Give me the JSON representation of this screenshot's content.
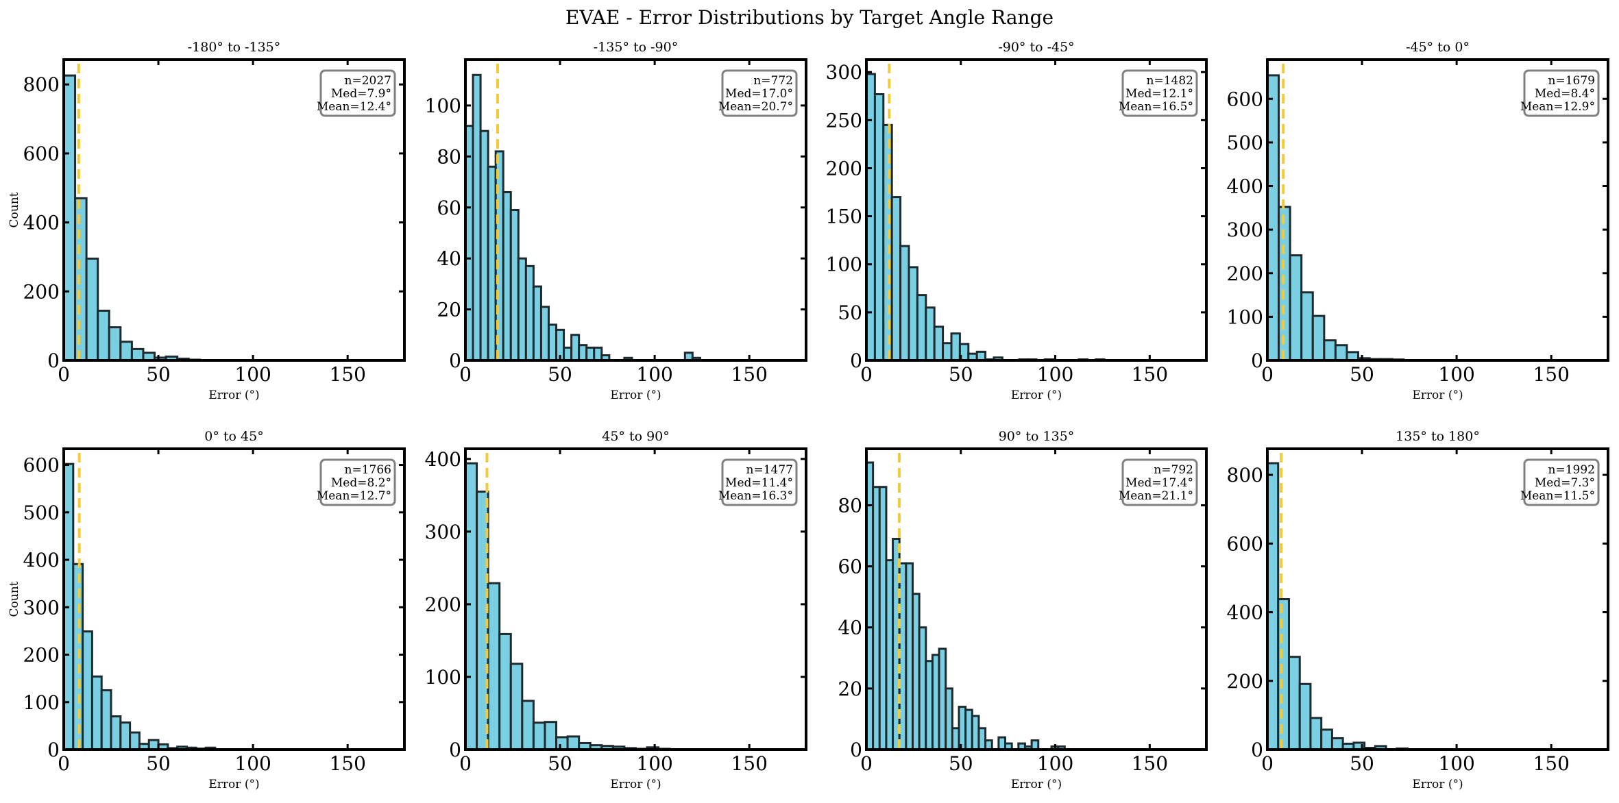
{
  "chart_data": {
    "type": "bar",
    "title": "EVAE - Error Distributions by Target Angle Range",
    "xlabel": "Error (°)",
    "ylabel": "Count",
    "colors": {
      "bar": "#7ACFE2",
      "edge": "#1f2a2e",
      "median_line": "#F2CB3A",
      "stat_box_edge": "#808080"
    },
    "grid": false,
    "stats_box_placement": "top-right",
    "panels": [
      {
        "title": "-180° to -135°",
        "xlim": [
          0,
          180
        ],
        "ylim": [
          0,
          872
        ],
        "xticks": [
          0,
          50,
          100,
          150
        ],
        "yticks": [
          0,
          200,
          400,
          600,
          800
        ],
        "bin_width": 6,
        "counts": [
          826,
          470,
          295,
          144,
          96,
          54,
          33,
          22,
          8,
          11,
          5,
          2
        ],
        "median": 7.9,
        "stats": {
          "n": "n=2027",
          "med": "Med=7.9°",
          "mean": "Mean=12.4°"
        },
        "show_ylabel": true
      },
      {
        "title": "-135° to -90°",
        "xlim": [
          0,
          180
        ],
        "ylim": [
          0,
          118
        ],
        "xticks": [
          0,
          50,
          100,
          150
        ],
        "yticks": [
          0,
          20,
          40,
          60,
          80,
          100
        ],
        "bin_width": 4,
        "counts": [
          92,
          112,
          90,
          76,
          82,
          66,
          59,
          40,
          37,
          29,
          21,
          14,
          12,
          5,
          10,
          6,
          5,
          5,
          2,
          0,
          0,
          1,
          0,
          0,
          0,
          0,
          0,
          0,
          0,
          3,
          1
        ],
        "median": 17.0,
        "stats": {
          "n": "n=772",
          "med": "Med=17.0°",
          "mean": "Mean=20.7°"
        },
        "show_ylabel": false
      },
      {
        "title": "-90° to -45°",
        "xlim": [
          0,
          180
        ],
        "ylim": [
          0,
          313
        ],
        "xticks": [
          0,
          50,
          100,
          150
        ],
        "yticks": [
          0,
          50,
          100,
          150,
          200,
          250,
          300
        ],
        "bin_width": 4.5,
        "counts": [
          298,
          277,
          245,
          170,
          119,
          97,
          68,
          55,
          35,
          18,
          28,
          17,
          7,
          9,
          1,
          3,
          0,
          0,
          1,
          1,
          0,
          1,
          0,
          0,
          0,
          1,
          0,
          1
        ],
        "median": 12.1,
        "stats": {
          "n": "n=1482",
          "med": "Med=12.1°",
          "mean": "Mean=16.5°"
        },
        "show_ylabel": false
      },
      {
        "title": "-45° to 0°",
        "xlim": [
          0,
          180
        ],
        "ylim": [
          0,
          690
        ],
        "xticks": [
          0,
          50,
          100,
          150
        ],
        "yticks": [
          0,
          100,
          200,
          300,
          400,
          500,
          600
        ],
        "bin_width": 6,
        "counts": [
          654,
          352,
          241,
          156,
          102,
          46,
          35,
          19,
          5,
          3,
          3,
          2
        ],
        "median": 8.4,
        "stats": {
          "n": "n=1679",
          "med": "Med=8.4°",
          "mean": "Mean=12.9°"
        },
        "show_ylabel": false
      },
      {
        "title": "0° to 45°",
        "xlim": [
          0,
          180
        ],
        "ylim": [
          0,
          634
        ],
        "xticks": [
          0,
          50,
          100,
          150
        ],
        "yticks": [
          0,
          100,
          200,
          300,
          400,
          500,
          600
        ],
        "bin_width": 5,
        "counts": [
          602,
          391,
          249,
          154,
          125,
          70,
          57,
          36,
          12,
          20,
          11,
          3,
          6,
          4,
          2,
          4
        ],
        "median": 8.2,
        "stats": {
          "n": "n=1766",
          "med": "Med=8.2°",
          "mean": "Mean=12.7°"
        },
        "show_ylabel": true
      },
      {
        "title": "45° to 90°",
        "xlim": [
          0,
          180
        ],
        "ylim": [
          0,
          414
        ],
        "xticks": [
          0,
          50,
          100,
          150
        ],
        "yticks": [
          0,
          100,
          200,
          300,
          400
        ],
        "bin_width": 6,
        "counts": [
          394,
          355,
          229,
          159,
          118,
          67,
          37,
          38,
          17,
          18,
          9,
          6,
          5,
          4,
          2,
          1,
          3,
          1
        ],
        "median": 11.4,
        "stats": {
          "n": "n=1477",
          "med": "Med=11.4°",
          "mean": "Mean=16.3°"
        },
        "show_ylabel": false
      },
      {
        "title": "90° to 135°",
        "xlim": [
          0,
          180
        ],
        "ylim": [
          0,
          98.5
        ],
        "xticks": [
          0,
          50,
          100,
          150
        ],
        "yticks": [
          0,
          20,
          40,
          60,
          80
        ],
        "bin_width": 3.5,
        "counts": [
          94,
          86,
          86,
          62,
          69,
          61,
          61,
          51,
          40,
          29,
          31,
          33,
          20,
          7,
          14,
          13,
          11,
          7,
          3,
          0,
          4,
          2,
          0,
          2,
          1,
          3,
          0,
          0,
          1,
          1
        ],
        "median": 17.4,
        "stats": {
          "n": "n=792",
          "med": "Med=17.4°",
          "mean": "Mean=21.1°"
        },
        "show_ylabel": false
      },
      {
        "title": "135° to 180°",
        "xlim": [
          0,
          180
        ],
        "ylim": [
          0,
          876
        ],
        "xticks": [
          0,
          50,
          100,
          150
        ],
        "yticks": [
          0,
          200,
          400,
          600,
          800
        ],
        "bin_width": 5.7,
        "counts": [
          834,
          438,
          270,
          191,
          92,
          58,
          33,
          17,
          20,
          5,
          10,
          0,
          3,
          1
        ],
        "median": 7.3,
        "stats": {
          "n": "n=1992",
          "med": "Med=7.3°",
          "mean": "Mean=11.5°"
        },
        "show_ylabel": false
      }
    ]
  }
}
